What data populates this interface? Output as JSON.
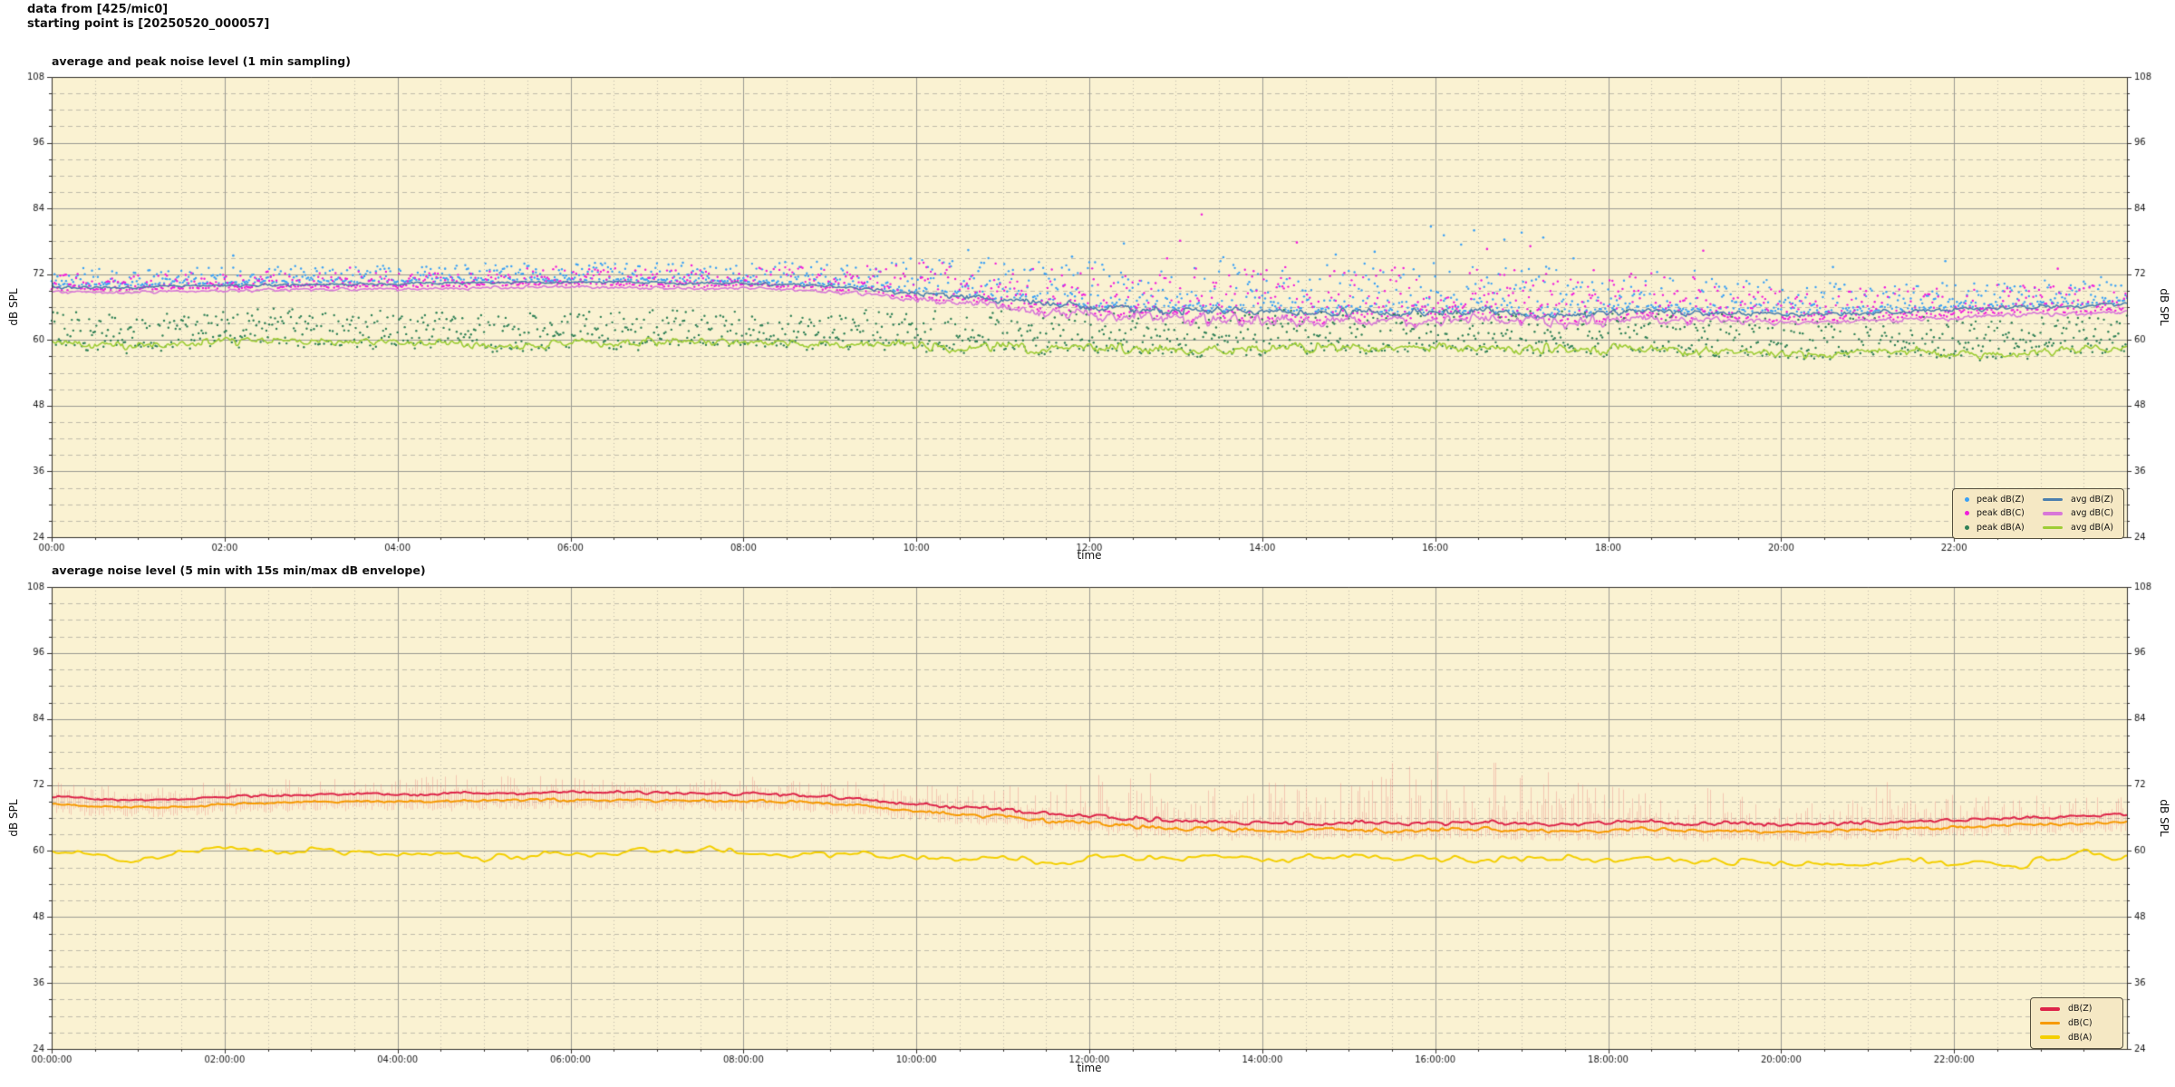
{
  "header": {
    "line1": "data from [425/mic0]",
    "line2": "starting point is [20250520_000057]"
  },
  "figure": {
    "bg": "#ffffff",
    "axes_bg": "#faf2d2",
    "grid_major": "#9a9a93",
    "grid_minor": "#c0bcab",
    "spine": "#33312c",
    "tick_label_color": "#1a1a1a"
  },
  "chart_data": [
    {
      "type": "scatter",
      "title": "average and peak noise level (1 min sampling)",
      "xlabel": "time",
      "ylabel_left": "dB SPL",
      "ylabel_right": "dB SPL",
      "xlim_hours": [
        0,
        24
      ],
      "ylim": [
        24,
        108
      ],
      "yticks": [
        24,
        36,
        48,
        60,
        72,
        84,
        96,
        108
      ],
      "y_minor_step": 3,
      "xtick_hours": [
        0,
        2,
        4,
        6,
        8,
        10,
        12,
        14,
        16,
        18,
        20,
        22
      ],
      "xtick_labels": [
        "00:00",
        "02:00",
        "04:00",
        "06:00",
        "08:00",
        "10:00",
        "12:00",
        "14:00",
        "16:00",
        "18:00",
        "20:00",
        "22:00"
      ],
      "x_minor_step_hours": 0.5,
      "anchor_step_hours": 0.5,
      "series": [
        {
          "name": "avg dB(Z)",
          "kind": "line",
          "color": "#4c7fae",
          "width": 1.6,
          "seed": 11,
          "noise_freq": [
            16,
            48
          ],
          "noise_amp": [
            [
              0,
              0.28
            ],
            [
              9,
              0.3
            ],
            [
              10,
              0.6
            ],
            [
              12,
              0.9
            ],
            [
              18,
              0.9
            ],
            [
              19,
              0.7
            ],
            [
              20,
              0.5
            ],
            [
              24,
              0.45
            ]
          ],
          "anchors": [
            69.7,
            69.5,
            69.6,
            69.8,
            69.9,
            70.0,
            70.1,
            70.2,
            70.2,
            70.3,
            70.4,
            70.5,
            70.6,
            70.5,
            70.4,
            70.3,
            70.3,
            70.1,
            69.8,
            69.2,
            68.5,
            67.9,
            67.3,
            66.7,
            66.1,
            65.7,
            65.4,
            65.2,
            65.0,
            64.9,
            65.1,
            64.8,
            65.0,
            65.2,
            64.9,
            64.7,
            65.0,
            65.3,
            64.8,
            65.0,
            64.6,
            64.8,
            65.0,
            65.2,
            65.5,
            65.8,
            66.0,
            66.2,
            66.5
          ]
        },
        {
          "name": "avg dB(C)",
          "kind": "line",
          "color": "#d877d8",
          "width": 1.6,
          "seed": 12,
          "noise_freq": [
            16,
            48
          ],
          "noise_amp": [
            [
              0,
              0.32
            ],
            [
              9,
              0.38
            ],
            [
              10,
              0.8
            ],
            [
              12,
              1.25
            ],
            [
              18,
              1.2
            ],
            [
              19,
              0.9
            ],
            [
              20,
              0.6
            ],
            [
              24,
              0.5
            ]
          ],
          "anchors": [
            68.8,
            68.6,
            68.7,
            68.9,
            69.0,
            69.1,
            69.2,
            69.3,
            69.3,
            69.4,
            69.5,
            69.6,
            69.7,
            69.6,
            69.5,
            69.4,
            69.4,
            69.2,
            68.8,
            68.2,
            67.4,
            66.7,
            66.0,
            65.3,
            64.7,
            64.2,
            63.9,
            63.7,
            63.5,
            63.4,
            63.6,
            63.3,
            63.5,
            63.7,
            63.4,
            63.2,
            63.5,
            63.8,
            63.3,
            63.5,
            63.1,
            63.3,
            63.5,
            63.7,
            64.0,
            64.4,
            64.7,
            64.9,
            65.2
          ]
        },
        {
          "name": "avg dB(A)",
          "kind": "line",
          "color": "#9ecd36",
          "width": 1.6,
          "seed": 13,
          "noise_freq": [
            14,
            44
          ],
          "noise_amp": [
            [
              0,
              0.85
            ],
            [
              9,
              0.9
            ],
            [
              10,
              1.1
            ],
            [
              19,
              1.1
            ],
            [
              20,
              0.95
            ],
            [
              24,
              0.9
            ]
          ],
          "anchors": [
            59.8,
            59.2,
            58.8,
            59.4,
            59.8,
            59.5,
            59.7,
            59.6,
            59.4,
            59.6,
            58.7,
            59.1,
            59.4,
            59.6,
            59.8,
            60.0,
            59.7,
            59.4,
            59.1,
            59.5,
            58.9,
            58.5,
            58.8,
            58.1,
            58.6,
            58.3,
            58.0,
            58.5,
            58.2,
            58.7,
            59.0,
            58.5,
            58.8,
            58.4,
            58.2,
            58.6,
            58.1,
            58.5,
            57.8,
            58.0,
            57.4,
            57.2,
            57.7,
            57.9,
            57.5,
            57.3,
            57.8,
            58.4,
            58.2
          ]
        },
        {
          "name": "peak dB(Z)",
          "kind": "scatter",
          "color": "#3aa0f5",
          "base": "avg dB(Z)",
          "offset": 0.4,
          "pow": 2.4,
          "seed": 21,
          "extent": [
            [
              0,
              3.0
            ],
            [
              8,
              3.2
            ],
            [
              9,
              4.2
            ],
            [
              10,
              6.0
            ],
            [
              11,
              7.5
            ],
            [
              12,
              8.5
            ],
            [
              18,
              8.5
            ],
            [
              19,
              7.0
            ],
            [
              20,
              5.5
            ],
            [
              22,
              4.8
            ],
            [
              24,
              4.5
            ]
          ]
        },
        {
          "name": "peak dB(C)",
          "kind": "scatter",
          "color": "#f01ddb",
          "base": "avg dB(C)",
          "offset": 0.5,
          "pow": 2.4,
          "seed": 22,
          "extent": [
            [
              0,
              2.8
            ],
            [
              8,
              3.0
            ],
            [
              9,
              4.2
            ],
            [
              10,
              6.5
            ],
            [
              12,
              9.0
            ],
            [
              18,
              9.0
            ],
            [
              20,
              6.0
            ],
            [
              22,
              5.2
            ],
            [
              24,
              5.0
            ]
          ]
        },
        {
          "name": "peak dB(A)",
          "kind": "scatter",
          "color": "#2f8056",
          "base": "avg dB(A)",
          "offset": -0.8,
          "pow": 1.35,
          "seed": 23,
          "extent": [
            [
              0,
              6.5
            ],
            [
              9,
              6.5
            ],
            [
              10,
              7.5
            ],
            [
              19,
              7.5
            ],
            [
              24,
              7.0
            ]
          ]
        }
      ],
      "outliers": [
        [
          2.1,
          75.4,
          3
        ],
        [
          3.45,
          73.2,
          4
        ],
        [
          4.55,
          73.0,
          3
        ],
        [
          5.6,
          72.9,
          3
        ],
        [
          7.3,
          74.1,
          3
        ],
        [
          7.4,
          73.6,
          4
        ],
        [
          8.9,
          73.0,
          3
        ],
        [
          10.6,
          76.4,
          3
        ],
        [
          11.8,
          75.2,
          3
        ],
        [
          12.4,
          77.6,
          3
        ],
        [
          12.9,
          74.9,
          4
        ],
        [
          13.05,
          78.1,
          4
        ],
        [
          13.3,
          82.9,
          4
        ],
        [
          13.55,
          75.1,
          3
        ],
        [
          14.4,
          77.8,
          4
        ],
        [
          14.85,
          75.6,
          3
        ],
        [
          15.3,
          76.1,
          3
        ],
        [
          15.95,
          80.7,
          3
        ],
        [
          16.1,
          79.1,
          3
        ],
        [
          16.3,
          77.4,
          3
        ],
        [
          16.45,
          80.0,
          3
        ],
        [
          16.6,
          76.6,
          4
        ],
        [
          16.8,
          78.3,
          3
        ],
        [
          17.0,
          79.6,
          3
        ],
        [
          17.1,
          77.1,
          4
        ],
        [
          17.25,
          78.7,
          3
        ],
        [
          17.6,
          74.9,
          3
        ],
        [
          19.1,
          76.3,
          4
        ],
        [
          20.6,
          73.3,
          3
        ],
        [
          21.9,
          74.4,
          3
        ],
        [
          23.2,
          73.0,
          4
        ]
      ],
      "legend": {
        "entries": [
          {
            "label": "peak dB(Z)",
            "marker": "dot",
            "color": "#3aa0f5"
          },
          {
            "label": "peak dB(C)",
            "marker": "dot",
            "color": "#f01ddb"
          },
          {
            "label": "peak dB(A)",
            "marker": "dot",
            "color": "#2f8056"
          },
          {
            "label": "avg dB(Z)",
            "marker": "line",
            "color": "#4c7fae"
          },
          {
            "label": "avg dB(C)",
            "marker": "line",
            "color": "#d877d8"
          },
          {
            "label": "avg dB(A)",
            "marker": "line",
            "color": "#9ecd36"
          }
        ]
      }
    },
    {
      "type": "line",
      "title": "average noise level (5 min with 15s min/max dB envelope)",
      "xlabel": "time",
      "ylabel_left": "dB SPL",
      "ylabel_right": "dB SPL",
      "xlim_hours": [
        0,
        24
      ],
      "ylim": [
        24,
        108
      ],
      "yticks": [
        24,
        36,
        48,
        60,
        72,
        84,
        96,
        108
      ],
      "y_minor_step": 3,
      "xtick_hours": [
        0,
        2,
        4,
        6,
        8,
        10,
        12,
        14,
        16,
        18,
        20,
        22
      ],
      "xtick_labels": [
        "00:00:00",
        "02:00:00",
        "04:00:00",
        "06:00:00",
        "08:00:00",
        "10:00:00",
        "12:00:00",
        "14:00:00",
        "16:00:00",
        "18:00:00",
        "20:00:00",
        "22:00:00"
      ],
      "x_minor_step_hours": 0.5,
      "anchor_step_hours": 0.5,
      "series": [
        {
          "name": "envelope",
          "kind": "envelope",
          "color": "#ed8f85",
          "alpha": 0.42,
          "upper": "dB(Z)",
          "lower": "dB(C)",
          "seed": 41,
          "amp": [
            [
              0,
              2.2
            ],
            [
              2,
              2.6
            ],
            [
              4,
              3.0
            ],
            [
              5,
              3.2
            ],
            [
              6,
              2.8
            ],
            [
              7,
              2.6
            ],
            [
              8,
              2.5
            ],
            [
              9,
              3.0
            ],
            [
              10,
              3.6
            ],
            [
              11,
              4.2
            ],
            [
              12,
              6.5
            ],
            [
              12.6,
              9.0
            ],
            [
              13.2,
              7.0
            ],
            [
              13.8,
              6.2
            ],
            [
              14.2,
              7.6
            ],
            [
              14.7,
              6.2
            ],
            [
              15.2,
              8.5
            ],
            [
              15.6,
              11.5
            ],
            [
              16.0,
              14.5
            ],
            [
              16.4,
              12.5
            ],
            [
              16.9,
              10.5
            ],
            [
              17.3,
              12.0
            ],
            [
              17.7,
              7.5
            ],
            [
              18.2,
              6.0
            ],
            [
              18.7,
              5.2
            ],
            [
              19.3,
              6.5
            ],
            [
              20.0,
              4.2
            ],
            [
              21.0,
              4.0
            ],
            [
              21.2,
              8.5
            ],
            [
              21.5,
              4.0
            ],
            [
              22.0,
              4.6
            ],
            [
              23.0,
              3.8
            ],
            [
              24,
              3.2
            ]
          ]
        },
        {
          "name": "dB(Z)",
          "kind": "line",
          "color": "#dd2449",
          "width": 2.0,
          "seed": 31,
          "noise_freq": [
            9,
            26
          ],
          "noise_amp": [
            [
              0,
              0.22
            ],
            [
              10,
              0.4
            ],
            [
              12,
              0.55
            ],
            [
              19,
              0.45
            ],
            [
              24,
              0.32
            ]
          ],
          "anchors": [
            69.9,
            69.5,
            69.3,
            69.4,
            69.8,
            70.1,
            70.2,
            70.3,
            70.3,
            70.4,
            70.5,
            70.6,
            70.6,
            70.6,
            70.5,
            70.4,
            70.4,
            70.2,
            69.9,
            69.3,
            68.6,
            68.0,
            67.4,
            66.8,
            66.2,
            65.8,
            65.5,
            65.3,
            65.1,
            65.0,
            65.2,
            64.9,
            65.1,
            65.3,
            65.0,
            64.8,
            65.1,
            65.4,
            64.9,
            65.1,
            64.7,
            64.9,
            65.1,
            65.3,
            65.6,
            65.9,
            66.1,
            66.3,
            66.6
          ]
        },
        {
          "name": "dB(C)",
          "kind": "line",
          "color": "#f79a00",
          "width": 2.0,
          "seed": 32,
          "noise_freq": [
            9,
            26
          ],
          "noise_amp": [
            [
              0,
              0.22
            ],
            [
              10,
              0.4
            ],
            [
              12,
              0.5
            ],
            [
              19,
              0.42
            ],
            [
              24,
              0.3
            ]
          ],
          "anchors": [
            68.6,
            68.1,
            67.9,
            68.0,
            68.5,
            68.8,
            68.9,
            69.0,
            69.0,
            69.1,
            69.2,
            69.3,
            69.3,
            69.3,
            69.2,
            69.1,
            69.1,
            68.9,
            68.6,
            68.0,
            67.3,
            66.7,
            66.1,
            65.5,
            64.9,
            64.5,
            64.2,
            64.0,
            63.8,
            63.7,
            63.9,
            63.6,
            63.8,
            64.0,
            63.7,
            63.5,
            63.8,
            64.1,
            63.6,
            63.8,
            63.4,
            63.6,
            63.8,
            64.0,
            64.3,
            64.6,
            64.8,
            65.0,
            65.3
          ]
        },
        {
          "name": "dB(A)",
          "kind": "line",
          "color": "#f4cf00",
          "width": 2.0,
          "seed": 33,
          "noise_freq": [
            5,
            13
          ],
          "noise_amp": [
            [
              0,
              0.9
            ],
            [
              24,
              0.95
            ]
          ],
          "anchors": [
            60.1,
            59.0,
            58.5,
            59.6,
            60.0,
            59.7,
            59.9,
            59.8,
            59.5,
            59.8,
            58.8,
            59.3,
            59.6,
            59.8,
            60.0,
            60.2,
            59.8,
            59.5,
            59.2,
            59.7,
            59.0,
            58.6,
            58.9,
            58.2,
            58.7,
            58.4,
            58.1,
            58.6,
            58.3,
            58.9,
            59.2,
            58.6,
            58.9,
            58.5,
            58.3,
            58.8,
            58.2,
            58.7,
            58.0,
            58.2,
            57.6,
            57.4,
            57.9,
            58.1,
            57.7,
            57.5,
            58.0,
            59.7,
            58.4
          ]
        }
      ],
      "outliers": [],
      "legend": {
        "entries": [
          {
            "label": "dB(Z)",
            "marker": "line",
            "color": "#dd2449"
          },
          {
            "label": "dB(C)",
            "marker": "line",
            "color": "#f79a00"
          },
          {
            "label": "dB(A)",
            "marker": "line",
            "color": "#f4cf00"
          }
        ]
      }
    }
  ]
}
